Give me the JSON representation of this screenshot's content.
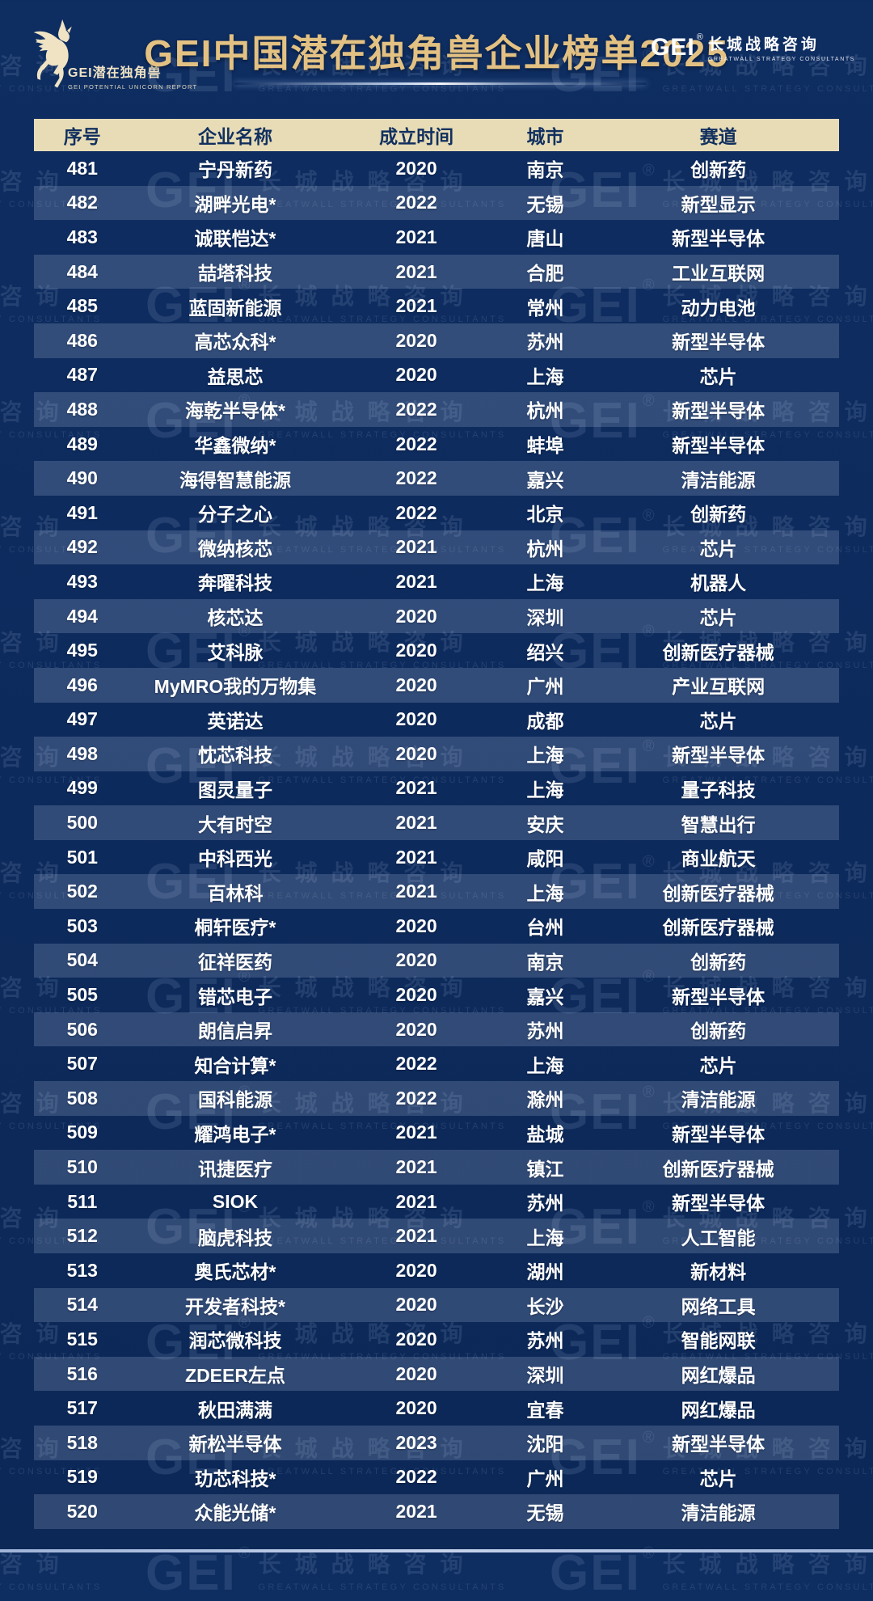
{
  "header": {
    "title": "GEI中国潜在独角兽企业榜单2025",
    "logo_left": {
      "icon": "unicorn-logo",
      "cn": "GEI潜在独角兽",
      "en": "GEI POTENTIAL UNICORN REPORT"
    },
    "logo_right": {
      "brand": "GEI",
      "reg": "®",
      "cn": "长城战略咨询",
      "en": "GREATWALL STRATEGY CONSULTANTS"
    }
  },
  "watermark": {
    "brand": "GEI",
    "reg": "®",
    "cn": "长城战略咨询",
    "en": "GREATWALL STRATEGY CONSULTANTS"
  },
  "colors": {
    "background": "#0d2a5c",
    "title_gold": "#e3c182",
    "header_row_bg": "#e8dcb6",
    "header_row_text": "#11305f",
    "row_stripe": "rgba(214,226,248,0.18)",
    "row_text": "#ffffff",
    "logo_cream": "#efe3c4"
  },
  "table": {
    "columns": [
      "序号",
      "企业名称",
      "成立时间",
      "城市",
      "赛道"
    ],
    "rows": [
      [
        "481",
        "宁丹新药",
        "2020",
        "南京",
        "创新药"
      ],
      [
        "482",
        "湖畔光电*",
        "2022",
        "无锡",
        "新型显示"
      ],
      [
        "483",
        "诚联恺达*",
        "2021",
        "唐山",
        "新型半导体"
      ],
      [
        "484",
        "喆塔科技",
        "2021",
        "合肥",
        "工业互联网"
      ],
      [
        "485",
        "蓝固新能源",
        "2021",
        "常州",
        "动力电池"
      ],
      [
        "486",
        "高芯众科*",
        "2020",
        "苏州",
        "新型半导体"
      ],
      [
        "487",
        "益思芯",
        "2020",
        "上海",
        "芯片"
      ],
      [
        "488",
        "海乾半导体*",
        "2022",
        "杭州",
        "新型半导体"
      ],
      [
        "489",
        "华鑫微纳*",
        "2022",
        "蚌埠",
        "新型半导体"
      ],
      [
        "490",
        "海得智慧能源",
        "2022",
        "嘉兴",
        "清洁能源"
      ],
      [
        "491",
        "分子之心",
        "2022",
        "北京",
        "创新药"
      ],
      [
        "492",
        "微纳核芯",
        "2021",
        "杭州",
        "芯片"
      ],
      [
        "493",
        "奔曜科技",
        "2021",
        "上海",
        "机器人"
      ],
      [
        "494",
        "核芯达",
        "2020",
        "深圳",
        "芯片"
      ],
      [
        "495",
        "艾科脉",
        "2020",
        "绍兴",
        "创新医疗器械"
      ],
      [
        "496",
        "MyMRO我的万物集",
        "2020",
        "广州",
        "产业互联网"
      ],
      [
        "497",
        "英诺达",
        "2020",
        "成都",
        "芯片"
      ],
      [
        "498",
        "忱芯科技",
        "2020",
        "上海",
        "新型半导体"
      ],
      [
        "499",
        "图灵量子",
        "2021",
        "上海",
        "量子科技"
      ],
      [
        "500",
        "大有时空",
        "2021",
        "安庆",
        "智慧出行"
      ],
      [
        "501",
        "中科西光",
        "2021",
        "咸阳",
        "商业航天"
      ],
      [
        "502",
        "百林科",
        "2021",
        "上海",
        "创新医疗器械"
      ],
      [
        "503",
        "桐轩医疗*",
        "2020",
        "台州",
        "创新医疗器械"
      ],
      [
        "504",
        "征祥医药",
        "2020",
        "南京",
        "创新药"
      ],
      [
        "505",
        "错芯电子",
        "2020",
        "嘉兴",
        "新型半导体"
      ],
      [
        "506",
        "朗信启昇",
        "2020",
        "苏州",
        "创新药"
      ],
      [
        "507",
        "知合计算*",
        "2022",
        "上海",
        "芯片"
      ],
      [
        "508",
        "国科能源",
        "2022",
        "滁州",
        "清洁能源"
      ],
      [
        "509",
        "耀鸿电子*",
        "2021",
        "盐城",
        "新型半导体"
      ],
      [
        "510",
        "讯捷医疗",
        "2021",
        "镇江",
        "创新医疗器械"
      ],
      [
        "511",
        "SIOK",
        "2021",
        "苏州",
        "新型半导体"
      ],
      [
        "512",
        "脑虎科技",
        "2021",
        "上海",
        "人工智能"
      ],
      [
        "513",
        "奥氏芯材*",
        "2020",
        "湖州",
        "新材料"
      ],
      [
        "514",
        "开发者科技*",
        "2020",
        "长沙",
        "网络工具"
      ],
      [
        "515",
        "润芯微科技",
        "2020",
        "苏州",
        "智能网联"
      ],
      [
        "516",
        "ZDEER左点",
        "2020",
        "深圳",
        "网红爆品"
      ],
      [
        "517",
        "秋田满满",
        "2020",
        "宜春",
        "网红爆品"
      ],
      [
        "518",
        "新松半导体",
        "2023",
        "沈阳",
        "新型半导体"
      ],
      [
        "519",
        "玏芯科技*",
        "2022",
        "广州",
        "芯片"
      ],
      [
        "520",
        "众能光储*",
        "2021",
        "无锡",
        "清洁能源"
      ]
    ]
  }
}
